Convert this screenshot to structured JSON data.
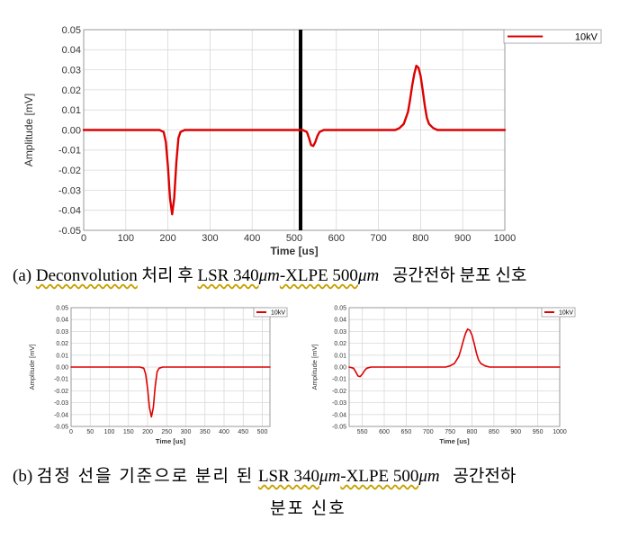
{
  "captions": {
    "a": {
      "label": "(a)",
      "word1": "Deconvolution",
      "text1": "처리 후",
      "word2": "LSR 340",
      "um1": "μm",
      "word3": "-XLPE 500",
      "um2": "μm",
      "text2": "공간전하 분포 신호"
    },
    "b": {
      "label": "(b)",
      "text1": "검정 선을 기준으로 분리 된",
      "word2": "LSR 340",
      "um1": "μm",
      "word3": "-XLPE 500",
      "um2": "μm",
      "text2": "공간전하",
      "line2": "분포 신호"
    }
  },
  "chart_data": [
    {
      "id": "main",
      "type": "line",
      "xlabel": "Time [us]",
      "ylabel": "Amplitude [mV]",
      "xlim": [
        0,
        1000
      ],
      "ylim": [
        -0.05,
        0.05
      ],
      "xticks": [
        0,
        100,
        200,
        300,
        400,
        500,
        600,
        700,
        800,
        900,
        1000
      ],
      "xtick_labels": [
        "0",
        "100",
        "200",
        "300",
        "400",
        "500",
        "600",
        "700",
        "800",
        "900",
        "1000"
      ],
      "yticks": [
        0.05,
        0.04,
        0.03,
        0.02,
        0.01,
        0.0,
        -0.01,
        -0.02,
        -0.03,
        -0.04,
        -0.05
      ],
      "ytick_labels": [
        "0.05",
        "0.04",
        "0.03",
        "0.02",
        "0.01",
        "0.00",
        "-0.01",
        "-0.02",
        "-0.03",
        "-0.04",
        "-0.05"
      ],
      "grid": true,
      "legend": "top-right",
      "separator_x": 515,
      "series": [
        {
          "name": "10kV",
          "color": "#dd0000",
          "x": [
            0,
            180,
            190,
            195,
            200,
            205,
            210,
            215,
            220,
            225,
            230,
            240,
            520,
            530,
            535,
            540,
            545,
            550,
            555,
            560,
            570,
            740,
            750,
            760,
            770,
            775,
            780,
            785,
            790,
            795,
            800,
            805,
            810,
            815,
            820,
            830,
            840,
            1000
          ],
          "y": [
            0,
            0,
            -0.001,
            -0.006,
            -0.018,
            -0.034,
            -0.042,
            -0.034,
            -0.016,
            -0.004,
            -0.001,
            0,
            0,
            -0.001,
            -0.004,
            -0.0075,
            -0.008,
            -0.006,
            -0.003,
            -0.001,
            0,
            0,
            0.001,
            0.003,
            0.009,
            0.015,
            0.022,
            0.028,
            0.032,
            0.031,
            0.027,
            0.02,
            0.012,
            0.006,
            0.003,
            0.001,
            0,
            0
          ]
        }
      ]
    },
    {
      "id": "left",
      "type": "line",
      "xlabel": "Time [us]",
      "ylabel": "Amplitude [mV]",
      "xlim": [
        0,
        520
      ],
      "ylim": [
        -0.05,
        0.05
      ],
      "xticks": [
        0,
        50,
        100,
        150,
        200,
        250,
        300,
        350,
        400,
        450,
        500
      ],
      "xtick_labels": [
        "0",
        "50",
        "100",
        "150",
        "200",
        "250",
        "300",
        "350",
        "400",
        "450",
        "500"
      ],
      "yticks": [
        0.05,
        0.04,
        0.03,
        0.02,
        0.01,
        0.0,
        -0.01,
        -0.02,
        -0.03,
        -0.04,
        -0.05
      ],
      "ytick_labels": [
        "0.05",
        "0.04",
        "0.03",
        "0.02",
        "0.01",
        "0.00",
        "-0.01",
        "-0.02",
        "-0.03",
        "-0.04",
        "-0.05"
      ],
      "grid": true,
      "legend": "top-right",
      "series": [
        {
          "name": "10kV",
          "color": "#dd0000",
          "x": [
            0,
            180,
            190,
            195,
            200,
            205,
            210,
            215,
            220,
            225,
            230,
            240,
            520
          ],
          "y": [
            0,
            0,
            -0.001,
            -0.006,
            -0.018,
            -0.034,
            -0.042,
            -0.034,
            -0.016,
            -0.004,
            -0.001,
            0,
            0
          ]
        }
      ]
    },
    {
      "id": "right",
      "type": "line",
      "xlabel": "Time [us]",
      "ylabel": "Amplitude [mV]",
      "xlim": [
        520,
        1000
      ],
      "ylim": [
        -0.05,
        0.05
      ],
      "xticks": [
        550,
        600,
        650,
        700,
        750,
        800,
        850,
        900,
        950,
        1000
      ],
      "xtick_labels": [
        "550",
        "600",
        "650",
        "700",
        "750",
        "800",
        "850",
        "900",
        "950",
        "1000"
      ],
      "yticks": [
        0.05,
        0.04,
        0.03,
        0.02,
        0.01,
        0.0,
        -0.01,
        -0.02,
        -0.03,
        -0.04,
        -0.05
      ],
      "ytick_labels": [
        "0.05",
        "0.04",
        "0.03",
        "0.02",
        "0.01",
        "0.00",
        "-0.01",
        "-0.02",
        "-0.03",
        "-0.04",
        "-0.05"
      ],
      "grid": true,
      "legend": "top-right",
      "series": [
        {
          "name": "10kV",
          "color": "#dd0000",
          "x": [
            520,
            530,
            535,
            540,
            545,
            550,
            555,
            560,
            570,
            740,
            750,
            760,
            770,
            775,
            780,
            785,
            790,
            795,
            800,
            805,
            810,
            815,
            820,
            830,
            840,
            1000
          ],
          "y": [
            0,
            -0.001,
            -0.004,
            -0.0075,
            -0.008,
            -0.006,
            -0.003,
            -0.001,
            0,
            0,
            0.001,
            0.003,
            0.009,
            0.015,
            0.022,
            0.028,
            0.032,
            0.031,
            0.027,
            0.02,
            0.012,
            0.006,
            0.003,
            0.001,
            0,
            0
          ]
        }
      ]
    }
  ]
}
